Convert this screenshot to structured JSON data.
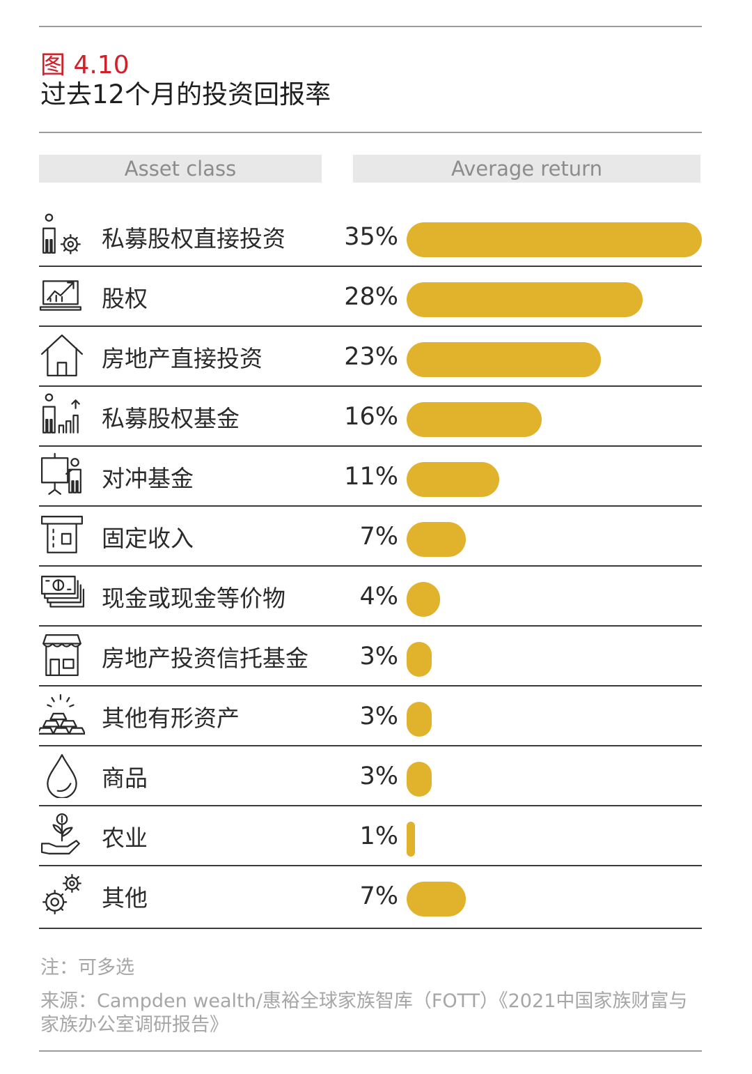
{
  "figure": {
    "label": "图 4.10",
    "title": "过去12个月的投资回报率"
  },
  "headers": {
    "asset_class": "Asset class",
    "average_return": "Average return"
  },
  "colors": {
    "bar": "#e1b22c",
    "figure_label": "#d0202a",
    "header_bg": "#e8e8e8",
    "rule": "#9b9b9b"
  },
  "chart_data": {
    "type": "bar",
    "orientation": "horizontal",
    "categories": [
      "私募股权直接投资",
      "股权",
      "房地产直接投资",
      "私募股权基金",
      "对冲基金",
      "固定收入",
      "现金或现金等价物",
      "房地产投资信托基金",
      "其他有形资产",
      "商品",
      "农业",
      "其他"
    ],
    "values": [
      35,
      28,
      23,
      16,
      11,
      7,
      4,
      3,
      3,
      3,
      1,
      7
    ],
    "value_labels": [
      "35%",
      "28%",
      "23%",
      "16%",
      "11%",
      "7%",
      "4%",
      "3%",
      "3%",
      "3%",
      "1%",
      "7%"
    ],
    "icons": [
      "person-gear-icon",
      "chart-monitor-icon",
      "house-icon",
      "person-growth-chart-icon",
      "presenter-board-icon",
      "atm-icon",
      "banknotes-icon",
      "storefront-icon",
      "gold-bars-icon",
      "droplet-icon",
      "hand-coin-plant-icon",
      "gears-icon"
    ],
    "title": "过去12个月的投资回报率",
    "xlim": [
      0,
      35
    ],
    "grid": false,
    "legend": "none"
  },
  "notes": {
    "note": "注：可多选",
    "source": "来源：Campden wealth/惠裕全球家族智库（FOTT）《2021中国家族财富与家族办公室调研报告》"
  }
}
